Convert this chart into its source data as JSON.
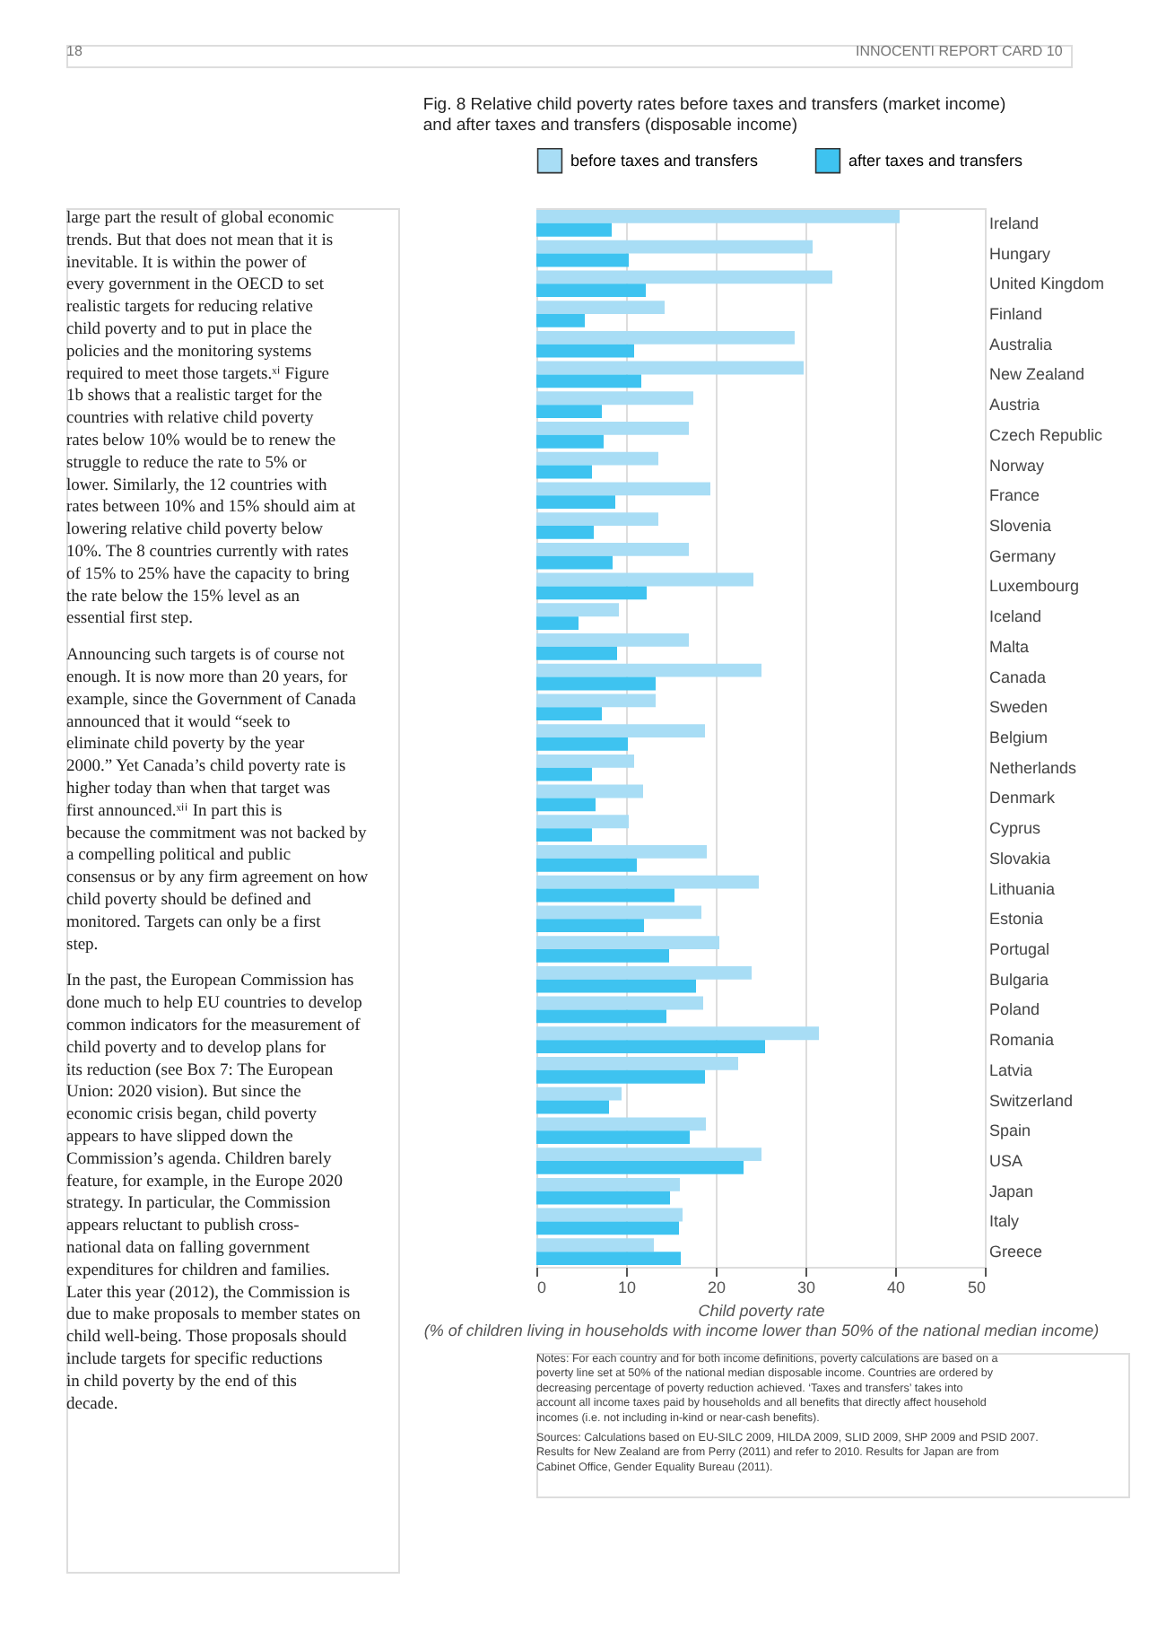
{
  "chart_data": {
    "type": "bar",
    "orientation": "horizontal",
    "title": "Fig. 8  Relative child poverty rates before taxes and transfers (market income) and after taxes and transfers (disposable income)",
    "xlabel": "Child poverty rate\n(% of children living in households with income lower than 50% of the national median income)",
    "categories": [
      "Ireland",
      "Hungary",
      "United Kingdom",
      "Finland",
      "Australia",
      "New Zealand",
      "Austria",
      "Czech Republic",
      "Norway",
      "France",
      "Slovenia",
      "Germany",
      "Luxembourg",
      "Iceland",
      "Malta",
      "Canada",
      "Sweden",
      "Belgium",
      "Netherlands",
      "Denmark",
      "Cyprus",
      "Slovakia",
      "Lithuania",
      "Estonia",
      "Portugal",
      "Bulgaria",
      "Poland",
      "Romania",
      "Latvia",
      "Switzerland",
      "Spain",
      "USA",
      "Japan",
      "Italy",
      "Greece"
    ],
    "series": [
      {
        "name": "before taxes and transfers",
        "color": "#a8ddf5",
        "values": [
          40.5,
          30.8,
          33.0,
          14.3,
          28.8,
          29.8,
          17.5,
          17.0,
          13.6,
          19.4,
          13.6,
          17.0,
          24.2,
          9.2,
          17.0,
          25.1,
          13.3,
          18.8,
          10.9,
          11.9,
          10.3,
          19.0,
          24.8,
          18.4,
          20.4,
          24.0,
          18.6,
          31.5,
          22.5,
          9.5,
          18.9,
          25.1,
          16.0,
          16.3,
          13.1
        ]
      },
      {
        "name": "after taxes and transfers",
        "color": "#3ec3f0",
        "values": [
          8.4,
          10.3,
          12.2,
          5.4,
          10.9,
          11.7,
          7.3,
          7.5,
          6.2,
          8.8,
          6.4,
          8.5,
          12.3,
          4.7,
          9.0,
          13.3,
          7.3,
          10.2,
          6.2,
          6.6,
          6.2,
          11.2,
          15.4,
          12.0,
          14.8,
          17.8,
          14.5,
          25.5,
          18.8,
          8.1,
          17.1,
          23.1,
          14.9,
          15.9,
          16.1
        ]
      }
    ],
    "xlim": [
      0,
      50
    ],
    "xticks": [
      0,
      10,
      20,
      30,
      40,
      50
    ],
    "grid": "x",
    "legend": "top left",
    "annotations": [
      "18",
      "INNOCENTI REPORT CARD 10",
      "large part the result of global economic trends. But that does not mean that it is inevitable. It is within the power of every government in the OECD to set realistic targets for reducing relative child poverty and to put in place the policies and the monitoring systems required to meet those targets.ˣⁱ Figure 1b shows that a realistic target for the countries with relative child poverty rates below 10% would be to renew the struggle to reduce the rate to 5% or lower. Similarly, the 12 countries with rates between 10% and 15% should aim at lowering relative child poverty below 10%. The 8 countries currently with rates of 15% to 25% have the capacity to bring the rate below the 15% level as an essential first step.",
      "Announcing such targets is of course not enough. It is now more than 20 years, for example, since the Government of Canada announced that it would “seek to eliminate child poverty by the year 2000.” Yet Canada’s child poverty rate is higher today than when that target was first announced.ˣⁱⁱ In part this is because the commitment was not backed by a compelling political and public consensus or by any firm agreement on how child poverty should be defined and monitored. Targets can only be a first step.",
      "In the past, the European Commission has done much to help EU countries to develop common indicators for the measurement of child poverty and to develop plans for its reduction (see Box 7: The European Union: 2020 vision). But since the economic crisis began, child poverty appears to have slipped down the Commission’s agenda. Children barely feature, for example, in the Europe 2020 strategy. In particular, the Commission appears reluctant to publish cross-national data on falling government expenditures for children and families. Later this year (2012), the Commission is due to make proposals to member states on child well-being. Those proposals should include targets for specific reductions in child poverty by the end of this decade.",
      "Notes: For each country and for both income definitions, poverty calculations are based on a poverty line set at 50% of the national median disposable income. Countries are ordered by decreasing percentage of poverty reduction achieved. ‘Taxes and transfers’ takes into account all income taxes paid by households and all benefits that directly affect household incomes (i.e. not including in-kind or near-cash benefits).",
      "Sources: Calculations based on EU-SILC 2009, HILDA 2009, SLID 2009, SHP 2009 and PSID 2007. Results for New Zealand are from Perry (2011) and refer to 2010. Results for Japan are from Cabinet Office, Gender Equality Bureau (2011)."
    ]
  }
}
